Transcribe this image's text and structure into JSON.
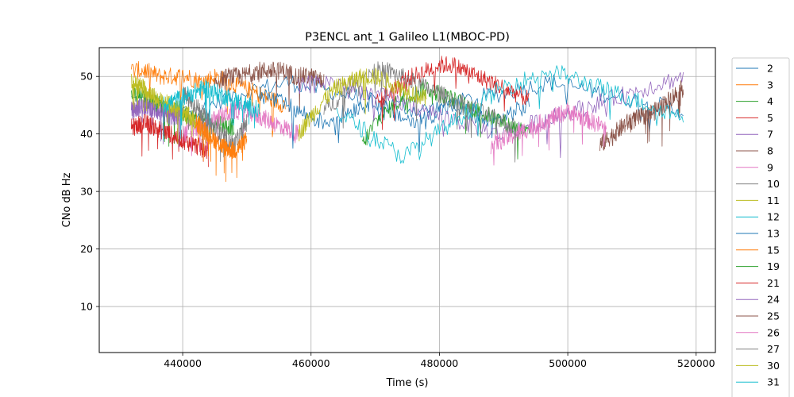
{
  "chart_data": {
    "type": "line",
    "title": "P3ENCL ant_1 Galileo L1(MBOC-PD)",
    "xlabel": "Time (s)",
    "ylabel": "CNo dB Hz",
    "xlim": [
      427000,
      523000
    ],
    "ylim": [
      2,
      55
    ],
    "xticks": [
      440000,
      460000,
      480000,
      500000,
      520000
    ],
    "xtick_labels": [
      "440000",
      "460000",
      "480000",
      "500000",
      "520000"
    ],
    "yticks": [
      10,
      20,
      30,
      40,
      50
    ],
    "ytick_labels": [
      "10",
      "20",
      "30",
      "40",
      "50"
    ],
    "grid": true,
    "legend_placement": "right (outside plot, clipped at bottom)",
    "series": [
      {
        "name": "2",
        "color": "#1f77b4",
        "start": 432000,
        "end": 518000,
        "values": [
          46,
          45,
          44,
          45,
          47,
          48,
          49,
          48,
          47,
          46,
          45,
          44,
          45,
          46,
          47,
          48,
          49,
          48,
          47,
          46,
          45,
          44
        ]
      },
      {
        "name": "3",
        "color": "#ff7f0e",
        "start": 432000,
        "end": 456000,
        "values": [
          51,
          51,
          50,
          50,
          50,
          49,
          50,
          49,
          48,
          47,
          46,
          45
        ]
      },
      {
        "name": "4",
        "color": "#2ca02c",
        "start": 432000,
        "end": 448000,
        "values": [
          47,
          46,
          45,
          44,
          43,
          42,
          42,
          41
        ]
      },
      {
        "name": "5",
        "color": "#d62728",
        "start": 432000,
        "end": 444000,
        "values": [
          41,
          42,
          41,
          40,
          39,
          38,
          37
        ]
      },
      {
        "name": "7",
        "color": "#9467bd",
        "start": 432000,
        "end": 440000,
        "values": [
          44,
          45,
          44,
          43,
          43
        ]
      },
      {
        "name": "8",
        "color": "#8c564b",
        "start": 445000,
        "end": 462000,
        "values": [
          49,
          50,
          50,
          51,
          51,
          51,
          50,
          50,
          49
        ]
      },
      {
        "name": "9",
        "color": "#e377c2",
        "start": 440000,
        "end": 458000,
        "values": [
          40,
          41,
          42,
          43,
          44,
          44,
          43,
          42,
          41,
          40
        ]
      },
      {
        "name": "10",
        "color": "#7f7f7f",
        "start": 440000,
        "end": 450000,
        "values": [
          47,
          45,
          42,
          40,
          38,
          42
        ]
      },
      {
        "name": "11",
        "color": "#bcbd22",
        "start": 432000,
        "end": 442000,
        "values": [
          49,
          48,
          46,
          45,
          44,
          42
        ]
      },
      {
        "name": "12",
        "color": "#17becf",
        "start": 437000,
        "end": 452000,
        "values": [
          45,
          46,
          47,
          48,
          47,
          46,
          45,
          44
        ]
      },
      {
        "name": "13",
        "color": "#1f77b4",
        "start": 452000,
        "end": 494000,
        "values": [
          47,
          46,
          45,
          44,
          43,
          42,
          43,
          44,
          45,
          46,
          44,
          43,
          42,
          43,
          44,
          45,
          44,
          43,
          42,
          43,
          44,
          45
        ]
      },
      {
        "name": "15",
        "color": "#ff7f0e",
        "start": 442000,
        "end": 450000,
        "values": [
          42,
          40,
          38,
          37,
          39
        ]
      },
      {
        "name": "19",
        "color": "#2ca02c",
        "start": 468000,
        "end": 494000,
        "values": [
          38,
          42,
          44,
          46,
          47,
          48,
          47,
          46,
          45,
          44,
          43,
          42,
          41,
          40
        ]
      },
      {
        "name": "21",
        "color": "#d62728",
        "start": 470000,
        "end": 494000,
        "values": [
          45,
          47,
          49,
          50,
          51,
          52,
          52,
          51,
          50,
          49,
          48,
          47,
          46
        ]
      },
      {
        "name": "24",
        "color": "#9467bd",
        "start": 458000,
        "end": 518000,
        "values": [
          48,
          49,
          49,
          48,
          47,
          46,
          45,
          44,
          43,
          42,
          41,
          40,
          41,
          42,
          43,
          44,
          45,
          46,
          47,
          48,
          49,
          50
        ]
      },
      {
        "name": "25",
        "color": "#8c564b",
        "start": 505000,
        "end": 518000,
        "values": [
          38,
          40,
          42,
          43,
          44,
          46,
          48
        ]
      },
      {
        "name": "26",
        "color": "#e377c2",
        "start": 488000,
        "end": 506000,
        "values": [
          38,
          39,
          40,
          41,
          42,
          43,
          44,
          43,
          42,
          41
        ]
      },
      {
        "name": "27",
        "color": "#7f7f7f",
        "start": 462000,
        "end": 492000,
        "values": [
          44,
          46,
          48,
          50,
          51,
          51,
          50,
          49,
          48,
          47,
          46,
          45,
          44,
          43,
          42,
          41
        ]
      },
      {
        "name": "30",
        "color": "#bcbd22",
        "start": 458000,
        "end": 478000,
        "values": [
          40,
          43,
          46,
          48,
          49,
          50,
          50,
          49,
          48,
          47,
          46
        ]
      },
      {
        "name": "31",
        "color": "#17becf",
        "start": 464000,
        "end": 518000,
        "values": [
          44,
          42,
          40,
          38,
          36,
          38,
          40,
          42,
          44,
          46,
          48,
          49,
          50,
          51,
          50,
          49,
          48,
          47,
          46,
          45,
          44,
          43
        ]
      }
    ]
  }
}
